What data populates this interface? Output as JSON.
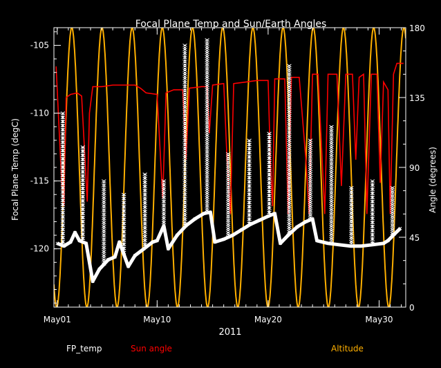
{
  "chart_data": {
    "type": "line",
    "title": "Focal Plane Temp and Sun/Earth Angles",
    "xlabel": "2011",
    "ylabel_left": "Focal Plane Temp (degC)",
    "ylabel_right": "Angle (degrees)",
    "x_tick_labels": [
      "May01",
      "May10",
      "May20",
      "May30"
    ],
    "x_tick_days": [
      1,
      10,
      20,
      30
    ],
    "xlim": [
      0.7,
      32.4
    ],
    "ylim_left": [
      -124.3,
      -103.7
    ],
    "ylim_right": [
      0,
      180
    ],
    "y_left_ticks": [
      -105,
      -110,
      -115,
      -120
    ],
    "y_left_tick_labels": [
      "-105",
      "-110",
      "-115",
      "-120"
    ],
    "y_right_ticks": [
      180,
      135,
      90,
      45,
      0
    ],
    "y_right_tick_labels": [
      "180",
      "135",
      "90",
      "45",
      "0"
    ],
    "grid": false,
    "legend_placement": "bottom",
    "series": [
      {
        "name": "FP_temp",
        "axis": "left",
        "color": "#ffffff",
        "marker": "x",
        "baseline": [
          {
            "x": 1.0,
            "y": -119.6
          },
          {
            "x": 1.6,
            "y": -119.8
          },
          {
            "x": 2.2,
            "y": -119.5
          },
          {
            "x": 2.6,
            "y": -118.8
          },
          {
            "x": 3.0,
            "y": -119.4
          },
          {
            "x": 3.6,
            "y": -119.6
          },
          {
            "x": 4.2,
            "y": -122.4
          },
          {
            "x": 4.8,
            "y": -121.5
          },
          {
            "x": 5.6,
            "y": -120.8
          },
          {
            "x": 6.2,
            "y": -120.6
          },
          {
            "x": 6.6,
            "y": -119.5
          },
          {
            "x": 7.4,
            "y": -121.3
          },
          {
            "x": 8.0,
            "y": -120.5
          },
          {
            "x": 8.8,
            "y": -120.0
          },
          {
            "x": 9.6,
            "y": -119.5
          },
          {
            "x": 10.0,
            "y": -119.4
          },
          {
            "x": 10.6,
            "y": -118.3
          },
          {
            "x": 11.0,
            "y": -120.0
          },
          {
            "x": 11.8,
            "y": -119.0
          },
          {
            "x": 12.6,
            "y": -118.3
          },
          {
            "x": 13.4,
            "y": -117.8
          },
          {
            "x": 14.2,
            "y": -117.4
          },
          {
            "x": 14.8,
            "y": -117.3
          },
          {
            "x": 15.2,
            "y": -119.5
          },
          {
            "x": 16.0,
            "y": -119.3
          },
          {
            "x": 16.8,
            "y": -119.0
          },
          {
            "x": 17.6,
            "y": -118.6
          },
          {
            "x": 18.4,
            "y": -118.2
          },
          {
            "x": 19.2,
            "y": -117.9
          },
          {
            "x": 20.0,
            "y": -117.6
          },
          {
            "x": 20.6,
            "y": -117.4
          },
          {
            "x": 21.1,
            "y": -119.6
          },
          {
            "x": 21.8,
            "y": -119.0
          },
          {
            "x": 22.6,
            "y": -118.4
          },
          {
            "x": 23.4,
            "y": -118.0
          },
          {
            "x": 24.0,
            "y": -117.8
          },
          {
            "x": 24.4,
            "y": -119.4
          },
          {
            "x": 25.4,
            "y": -119.6
          },
          {
            "x": 26.4,
            "y": -119.7
          },
          {
            "x": 27.4,
            "y": -119.8
          },
          {
            "x": 28.4,
            "y": -119.8
          },
          {
            "x": 29.4,
            "y": -119.7
          },
          {
            "x": 30.4,
            "y": -119.6
          },
          {
            "x": 30.8,
            "y": -119.4
          },
          {
            "x": 31.4,
            "y": -118.9
          },
          {
            "x": 31.9,
            "y": -118.5
          }
        ],
        "spikes": [
          {
            "x": 1.5,
            "y": -110.0
          },
          {
            "x": 3.3,
            "y": -112.5
          },
          {
            "x": 5.2,
            "y": -115.0
          },
          {
            "x": 7.0,
            "y": -116.0
          },
          {
            "x": 8.9,
            "y": -114.5
          },
          {
            "x": 10.6,
            "y": -115.0
          },
          {
            "x": 12.5,
            "y": -105.0
          },
          {
            "x": 14.5,
            "y": -104.6
          },
          {
            "x": 16.4,
            "y": -113.0
          },
          {
            "x": 18.3,
            "y": -112.0
          },
          {
            "x": 20.1,
            "y": -111.5
          },
          {
            "x": 21.9,
            "y": -106.5
          },
          {
            "x": 23.8,
            "y": -112.0
          },
          {
            "x": 25.7,
            "y": -111.0
          },
          {
            "x": 27.5,
            "y": -115.5
          },
          {
            "x": 29.4,
            "y": -115.0
          },
          {
            "x": 31.2,
            "y": -115.5
          }
        ]
      },
      {
        "name": "Sun angle",
        "axis": "right",
        "color": "#ff0000",
        "points": [
          {
            "x": 0.9,
            "y": 155
          },
          {
            "x": 1.2,
            "y": 110
          },
          {
            "x": 1.4,
            "y": 80
          },
          {
            "x": 1.6,
            "y": 65
          },
          {
            "x": 1.8,
            "y": 135
          },
          {
            "x": 2.2,
            "y": 137
          },
          {
            "x": 2.8,
            "y": 138
          },
          {
            "x": 3.2,
            "y": 136
          },
          {
            "x": 3.5,
            "y": 95
          },
          {
            "x": 3.7,
            "y": 68
          },
          {
            "x": 3.9,
            "y": 125
          },
          {
            "x": 4.2,
            "y": 142
          },
          {
            "x": 5.0,
            "y": 142
          },
          {
            "x": 6.0,
            "y": 143
          },
          {
            "x": 7.0,
            "y": 143
          },
          {
            "x": 8.0,
            "y": 143
          },
          {
            "x": 8.5,
            "y": 141
          },
          {
            "x": 9.0,
            "y": 138
          },
          {
            "x": 10.0,
            "y": 137
          },
          {
            "x": 10.5,
            "y": 70
          },
          {
            "x": 10.8,
            "y": 138
          },
          {
            "x": 11.5,
            "y": 140
          },
          {
            "x": 12.3,
            "y": 140
          },
          {
            "x": 12.6,
            "y": 95
          },
          {
            "x": 12.9,
            "y": 141
          },
          {
            "x": 14.0,
            "y": 142
          },
          {
            "x": 14.5,
            "y": 142
          },
          {
            "x": 14.7,
            "y": 112
          },
          {
            "x": 15.0,
            "y": 143
          },
          {
            "x": 16.0,
            "y": 144
          },
          {
            "x": 16.3,
            "y": 95
          },
          {
            "x": 16.6,
            "y": 60
          },
          {
            "x": 16.9,
            "y": 144
          },
          {
            "x": 18.0,
            "y": 145
          },
          {
            "x": 19.0,
            "y": 146
          },
          {
            "x": 20.0,
            "y": 146
          },
          {
            "x": 20.2,
            "y": 95
          },
          {
            "x": 20.4,
            "y": 65
          },
          {
            "x": 20.6,
            "y": 147
          },
          {
            "x": 21.5,
            "y": 147
          },
          {
            "x": 21.8,
            "y": 60
          },
          {
            "x": 22.1,
            "y": 148
          },
          {
            "x": 22.8,
            "y": 148
          },
          {
            "x": 23.4,
            "y": 95
          },
          {
            "x": 23.7,
            "y": 60
          },
          {
            "x": 24.0,
            "y": 150
          },
          {
            "x": 24.5,
            "y": 150
          },
          {
            "x": 24.8,
            "y": 105
          },
          {
            "x": 25.1,
            "y": 60
          },
          {
            "x": 25.4,
            "y": 150
          },
          {
            "x": 26.2,
            "y": 150
          },
          {
            "x": 26.6,
            "y": 78
          },
          {
            "x": 27.0,
            "y": 150
          },
          {
            "x": 27.6,
            "y": 150
          },
          {
            "x": 27.9,
            "y": 95
          },
          {
            "x": 28.2,
            "y": 148
          },
          {
            "x": 28.6,
            "y": 150
          },
          {
            "x": 28.9,
            "y": 60
          },
          {
            "x": 29.3,
            "y": 150
          },
          {
            "x": 29.8,
            "y": 150
          },
          {
            "x": 30.1,
            "y": 80
          },
          {
            "x": 30.4,
            "y": 145
          },
          {
            "x": 30.8,
            "y": 140
          },
          {
            "x": 31.0,
            "y": 60
          },
          {
            "x": 31.3,
            "y": 150
          },
          {
            "x": 31.6,
            "y": 157
          },
          {
            "x": 32.2,
            "y": 157
          }
        ]
      },
      {
        "name": "Altitude",
        "axis": "right",
        "color": "#ffb000",
        "function": "sine",
        "period_days": 2.72,
        "zero_at_day": 0.95,
        "amplitude_min": 0,
        "amplitude_max": 180
      }
    ]
  }
}
